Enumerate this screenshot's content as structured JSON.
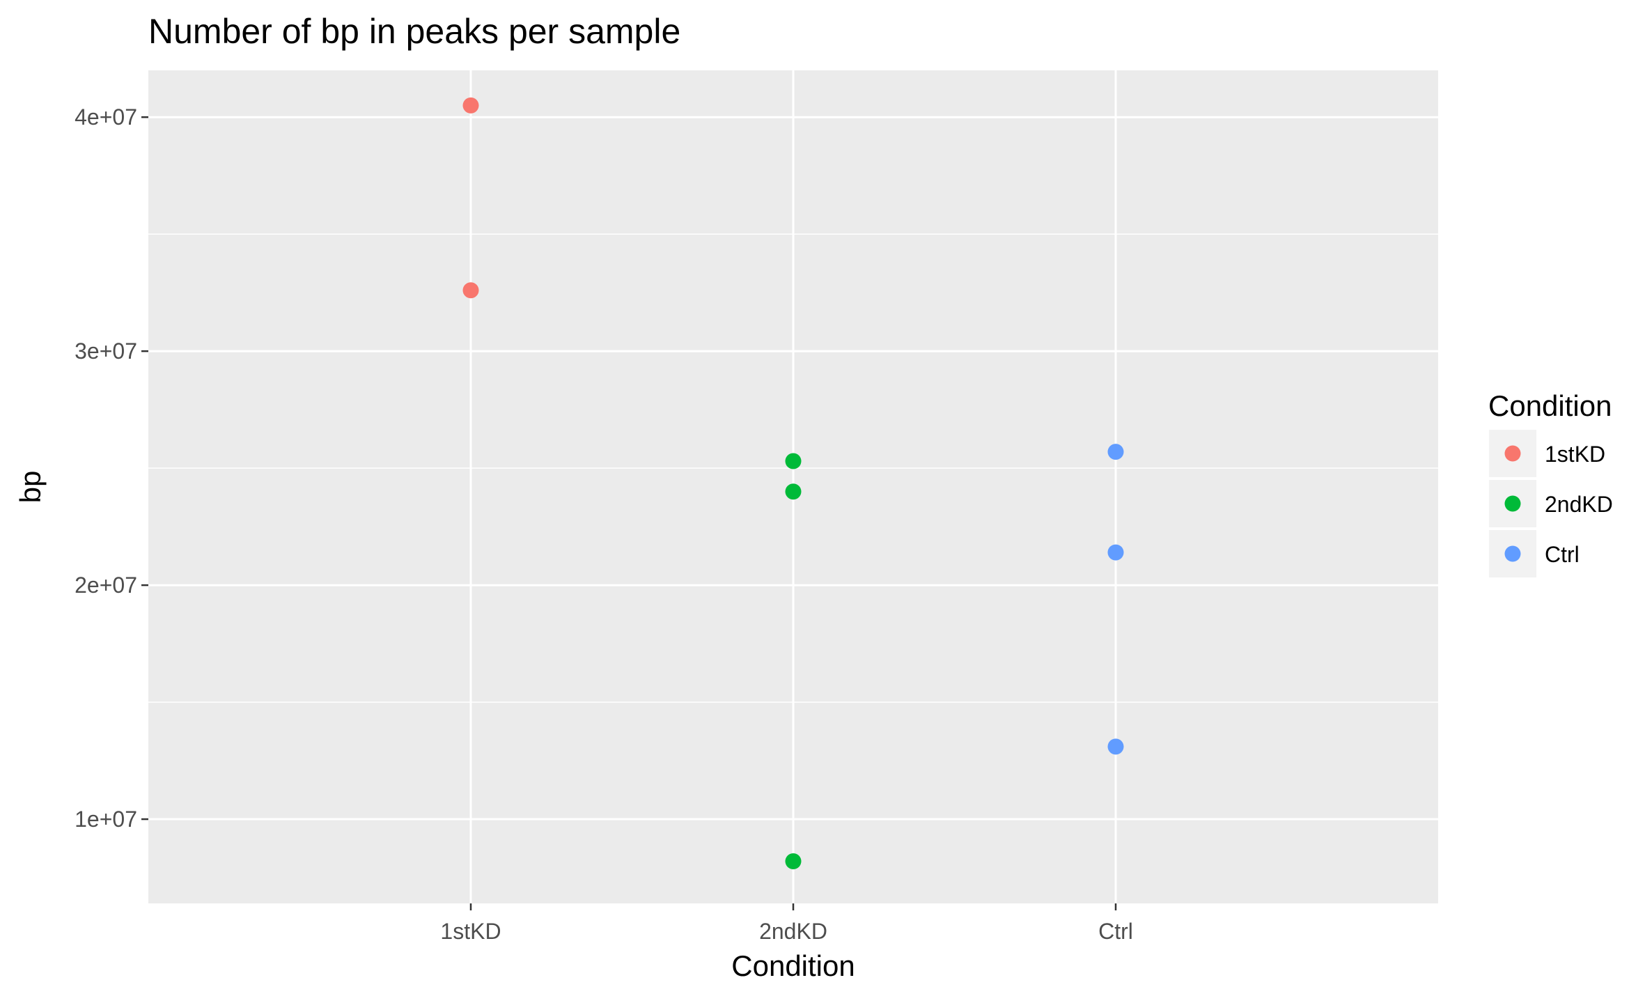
{
  "chart_data": {
    "type": "scatter",
    "title": "Number of bp in peaks per sample",
    "xlabel": "Condition",
    "ylabel": "bp",
    "categories": [
      "1stKD",
      "2ndKD",
      "Ctrl"
    ],
    "y_ticks": [
      10000000,
      20000000,
      30000000,
      40000000
    ],
    "y_tick_labels": [
      "1e+07",
      "2e+07",
      "3e+07",
      "4e+07"
    ],
    "ylim": [
      6400000,
      42000000
    ],
    "grid": true,
    "legend": {
      "title": "Condition",
      "position": "right",
      "entries": [
        "1stKD",
        "2ndKD",
        "Ctrl"
      ]
    },
    "series": [
      {
        "name": "1stKD",
        "color": "#F8766D",
        "x": [
          "1stKD",
          "1stKD"
        ],
        "y": [
          40500000,
          32600000
        ]
      },
      {
        "name": "2ndKD",
        "color": "#00BA38",
        "x": [
          "2ndKD",
          "2ndKD",
          "2ndKD"
        ],
        "y": [
          25300000,
          24000000,
          8200000
        ]
      },
      {
        "name": "Ctrl",
        "color": "#619CFF",
        "x": [
          "Ctrl",
          "Ctrl",
          "Ctrl"
        ],
        "y": [
          25700000,
          21400000,
          13100000
        ]
      }
    ]
  }
}
